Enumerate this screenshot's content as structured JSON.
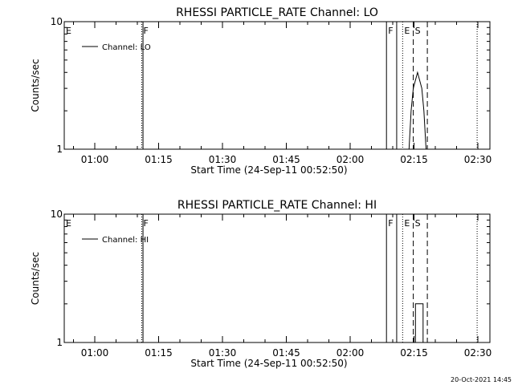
{
  "timestamp": "20-Oct-2021 14:45",
  "chart_data": [
    {
      "type": "line",
      "title": "RHESSI PARTICLE_RATE Channel: LO",
      "xlabel": "Start Time (24-Sep-11 00:52:50)",
      "ylabel": "Counts/sec",
      "x_unit": "minutes since 00:52:50",
      "xlim": [
        0,
        100
      ],
      "ylim": [
        1,
        10
      ],
      "y_scale": "log",
      "x_ticks": [
        {
          "value": 7.17,
          "label": "01:00"
        },
        {
          "value": 22.17,
          "label": "01:15"
        },
        {
          "value": 37.17,
          "label": "01:30"
        },
        {
          "value": 52.17,
          "label": "01:45"
        },
        {
          "value": 67.17,
          "label": "02:00"
        },
        {
          "value": 82.17,
          "label": "02:15"
        },
        {
          "value": 97.17,
          "label": "02:30"
        }
      ],
      "y_ticks": [
        {
          "value": 1,
          "label": "1"
        },
        {
          "value": 10,
          "label": "10"
        }
      ],
      "legend": {
        "label": "Channel: LO",
        "position": "top-left"
      },
      "series": [
        {
          "name": "Channel: LO",
          "x": [
            81.0,
            81.5,
            82.0,
            83.0,
            84.0,
            84.5,
            85.0
          ],
          "y": [
            1.0,
            2.0,
            3.0,
            4.0,
            3.0,
            2.0,
            1.0
          ]
        }
      ],
      "markers": [
        {
          "x": 0.0,
          "style": "dotted",
          "label": "E"
        },
        {
          "x": 18.2,
          "style": "dotted",
          "label": "F"
        },
        {
          "x": 18.5,
          "style": "solid",
          "label": ""
        },
        {
          "x": 75.7,
          "style": "solid",
          "label": "F"
        },
        {
          "x": 78.1,
          "style": "solid",
          "label": ""
        },
        {
          "x": 79.5,
          "style": "dotted",
          "label": "E"
        },
        {
          "x": 82.0,
          "style": "dashed",
          "label": "S"
        },
        {
          "x": 85.3,
          "style": "dashed",
          "label": ""
        },
        {
          "x": 97.0,
          "style": "dotted",
          "label": ""
        }
      ]
    },
    {
      "type": "line",
      "title": "RHESSI PARTICLE_RATE Channel: HI",
      "xlabel": "Start Time (24-Sep-11 00:52:50)",
      "ylabel": "Counts/sec",
      "x_unit": "minutes since 00:52:50",
      "xlim": [
        0,
        100
      ],
      "ylim": [
        1,
        10
      ],
      "y_scale": "log",
      "x_ticks": [
        {
          "value": 7.17,
          "label": "01:00"
        },
        {
          "value": 22.17,
          "label": "01:15"
        },
        {
          "value": 37.17,
          "label": "01:30"
        },
        {
          "value": 52.17,
          "label": "01:45"
        },
        {
          "value": 67.17,
          "label": "02:00"
        },
        {
          "value": 82.17,
          "label": "02:15"
        },
        {
          "value": 97.17,
          "label": "02:30"
        }
      ],
      "y_ticks": [
        {
          "value": 1,
          "label": "1"
        },
        {
          "value": 10,
          "label": "10"
        }
      ],
      "legend": {
        "label": "Channel: HI",
        "position": "top-left"
      },
      "series": [
        {
          "name": "Channel: HI",
          "x": [
            82.5,
            82.5,
            84.3,
            84.3
          ],
          "y": [
            1.0,
            2.0,
            2.0,
            1.0
          ]
        }
      ],
      "markers": [
        {
          "x": 0.0,
          "style": "dotted",
          "label": "E"
        },
        {
          "x": 18.2,
          "style": "dotted",
          "label": "F"
        },
        {
          "x": 18.5,
          "style": "solid",
          "label": ""
        },
        {
          "x": 75.7,
          "style": "solid",
          "label": "F"
        },
        {
          "x": 78.1,
          "style": "solid",
          "label": ""
        },
        {
          "x": 79.5,
          "style": "dotted",
          "label": "E"
        },
        {
          "x": 82.0,
          "style": "dashed",
          "label": "S"
        },
        {
          "x": 85.3,
          "style": "dashed",
          "label": ""
        },
        {
          "x": 97.0,
          "style": "dotted",
          "label": ""
        }
      ]
    }
  ]
}
